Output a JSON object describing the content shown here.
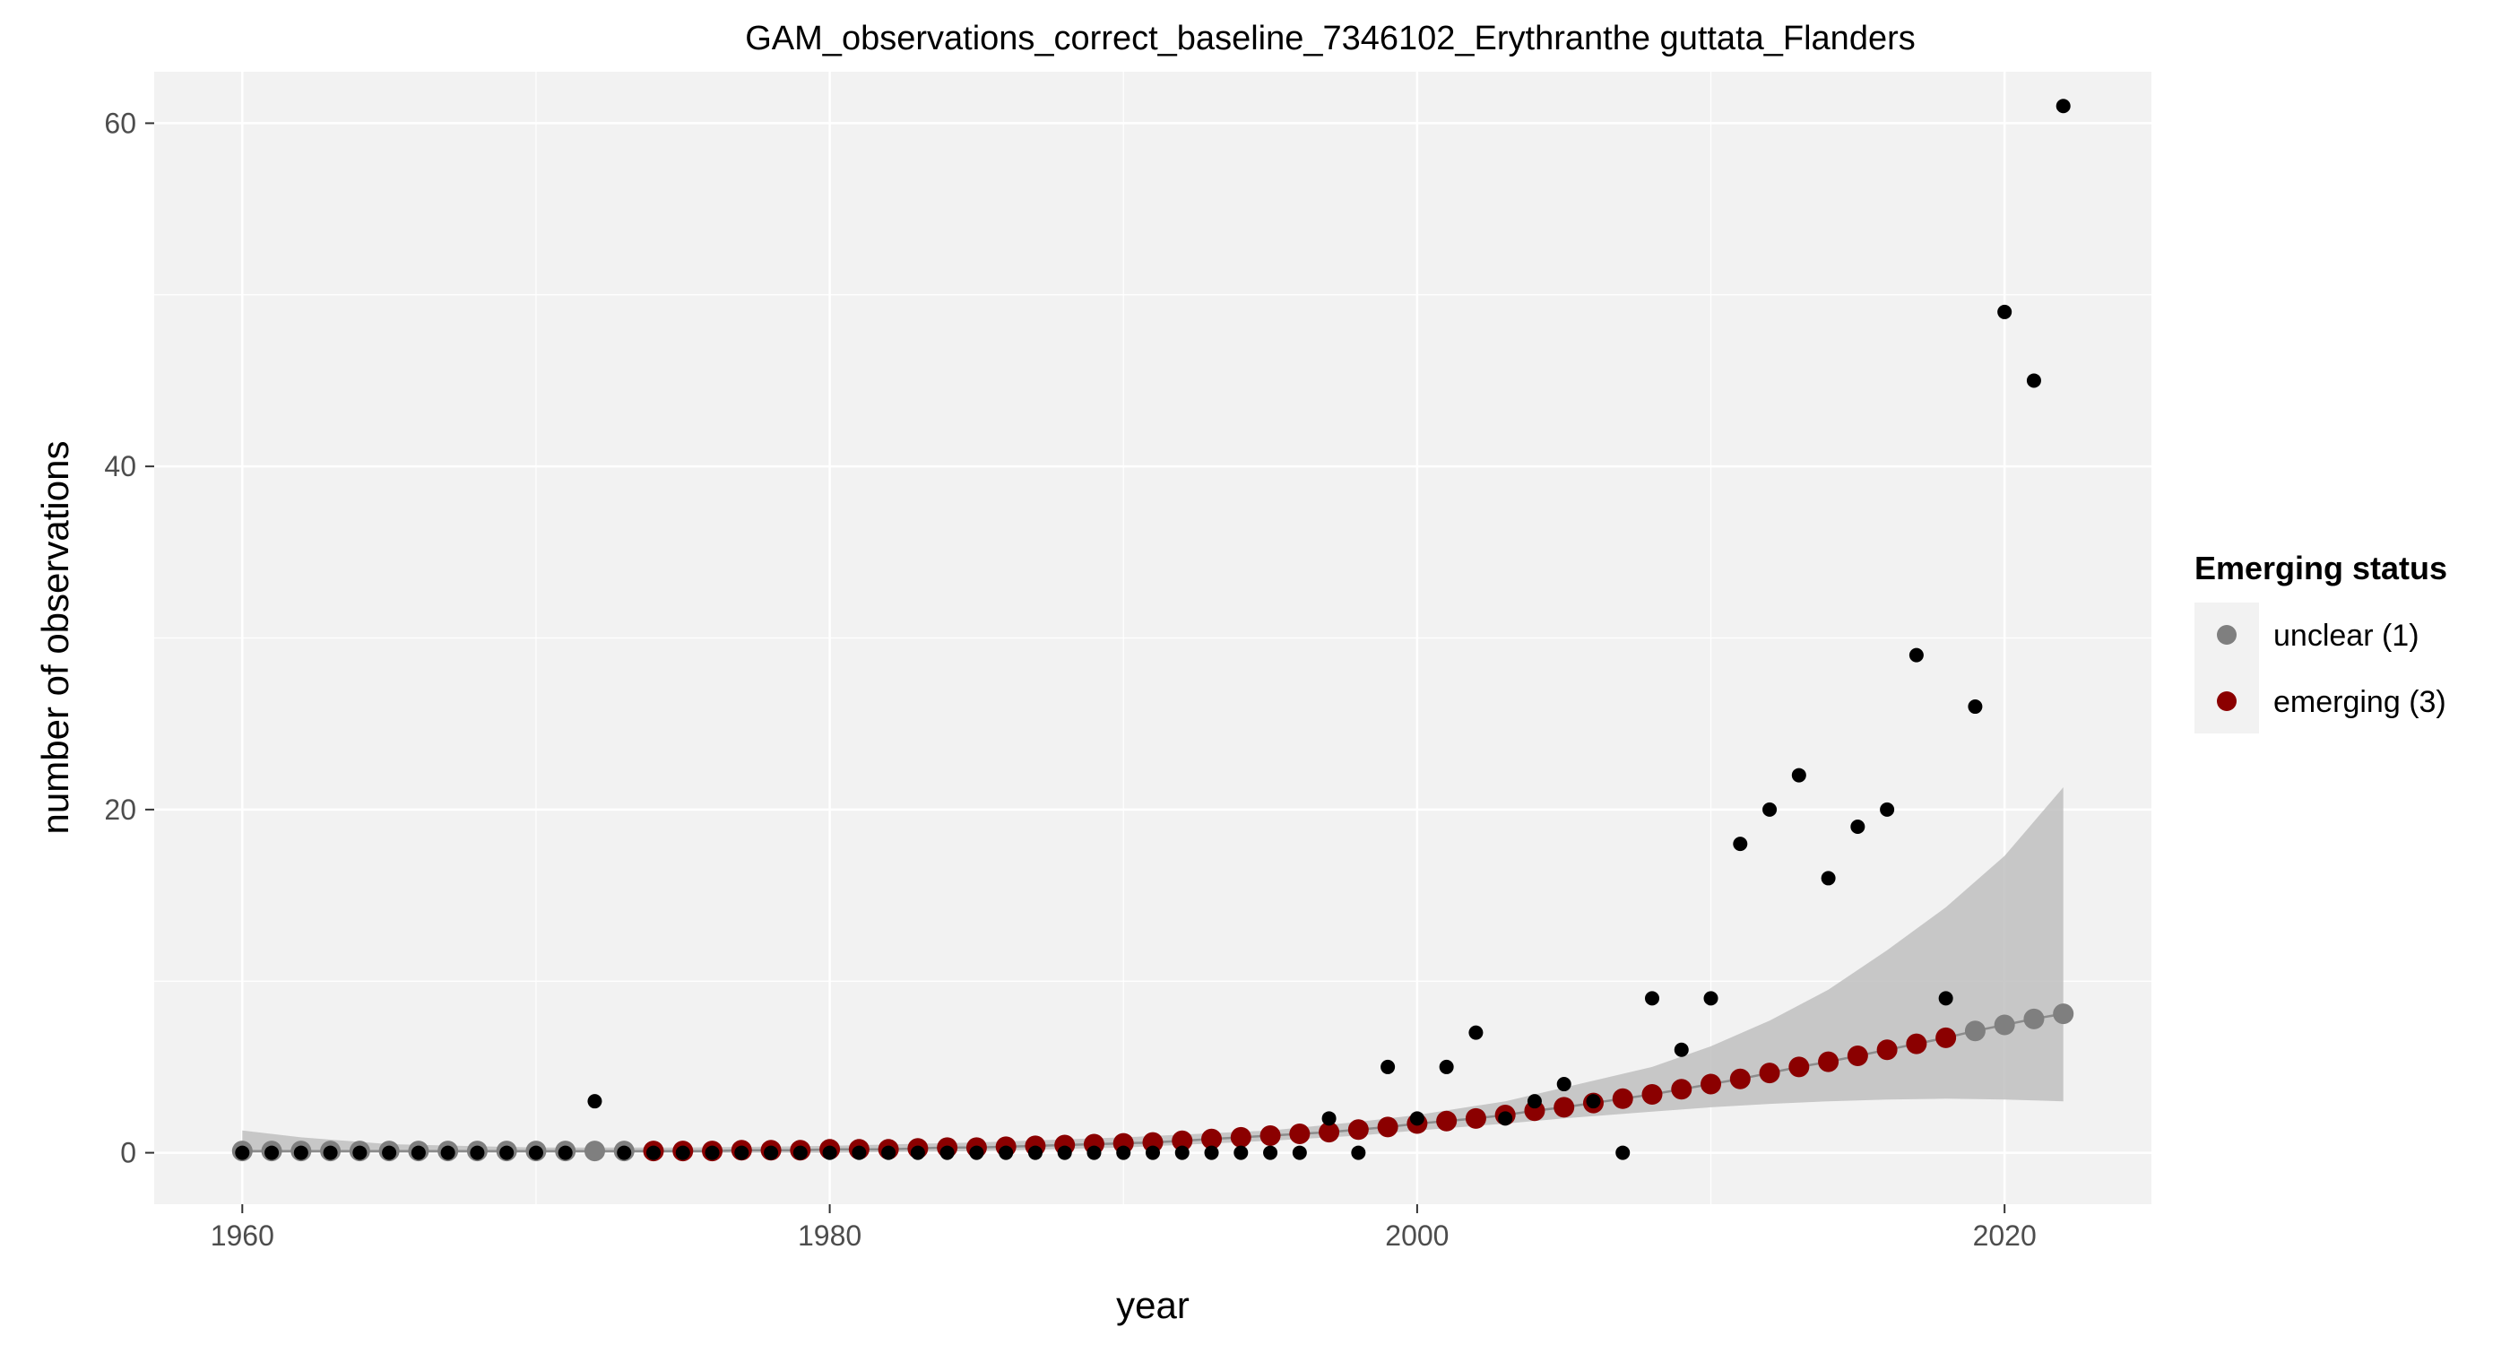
{
  "chart_data": {
    "type": "scatter",
    "title": "GAM_observations_correct_baseline_7346102_Erythranthe guttata_Flanders",
    "xlabel": "year",
    "ylabel": "number of observations",
    "xlim": [
      1957,
      2025
    ],
    "ylim": [
      -3,
      63
    ],
    "x_ticks": [
      1960,
      1980,
      2000,
      2020
    ],
    "y_ticks": [
      0,
      20,
      40,
      60
    ],
    "grid": true,
    "legend": {
      "title": "Emerging status",
      "position": "right",
      "entries": [
        {
          "label": "unclear (1)",
          "color": "#7f7f7f"
        },
        {
          "label": "emerging (3)",
          "color": "#8b0000"
        }
      ]
    },
    "colors": {
      "panel": "#f2f2f2",
      "grid": "#ffffff",
      "observed": "#000000",
      "ribbon": "#bfbfbf",
      "unclear": "#7f7f7f",
      "emerging": "#8b0000"
    },
    "observed": {
      "x": [
        1960,
        1961,
        1962,
        1963,
        1964,
        1965,
        1966,
        1967,
        1968,
        1969,
        1970,
        1971,
        1972,
        1973,
        1974,
        1975,
        1976,
        1977,
        1978,
        1979,
        1980,
        1981,
        1982,
        1983,
        1984,
        1985,
        1986,
        1987,
        1988,
        1989,
        1990,
        1991,
        1992,
        1993,
        1994,
        1995,
        1996,
        1997,
        1998,
        1999,
        2000,
        2001,
        2002,
        2003,
        2004,
        2005,
        2006,
        2007,
        2008,
        2009,
        2010,
        2011,
        2012,
        2013,
        2014,
        2015,
        2016,
        2017,
        2018,
        2019,
        2020,
        2021,
        2022
      ],
      "y": [
        0,
        0,
        0,
        0,
        0,
        0,
        0,
        0,
        0,
        0,
        0,
        0,
        3,
        0,
        0,
        0,
        0,
        0,
        0,
        0,
        0,
        0,
        0,
        0,
        0,
        0,
        0,
        0,
        0,
        0,
        0,
        0,
        0,
        0,
        0,
        0,
        0,
        2,
        0,
        5,
        2,
        5,
        7,
        2,
        3,
        4,
        3,
        0,
        9,
        6,
        9,
        18,
        20,
        22,
        16,
        19,
        20,
        29,
        9,
        26,
        49,
        45,
        61
      ]
    },
    "smooth": {
      "x": [
        1960,
        1961,
        1962,
        1963,
        1964,
        1965,
        1966,
        1967,
        1968,
        1969,
        1970,
        1971,
        1972,
        1973,
        1974,
        1975,
        1976,
        1977,
        1978,
        1979,
        1980,
        1981,
        1982,
        1983,
        1984,
        1985,
        1986,
        1987,
        1988,
        1989,
        1990,
        1991,
        1992,
        1993,
        1994,
        1995,
        1996,
        1997,
        1998,
        1999,
        2000,
        2001,
        2002,
        2003,
        2004,
        2005,
        2006,
        2007,
        2008,
        2009,
        2010,
        2011,
        2012,
        2013,
        2014,
        2015,
        2016,
        2017,
        2018,
        2019,
        2020,
        2021,
        2022
      ],
      "y": [
        0.1,
        0.1,
        0.1,
        0.1,
        0.1,
        0.1,
        0.1,
        0.1,
        0.1,
        0.1,
        0.1,
        0.1,
        0.1,
        0.1,
        0.1,
        0.1,
        0.1,
        0.15,
        0.15,
        0.15,
        0.2,
        0.2,
        0.2,
        0.25,
        0.3,
        0.3,
        0.35,
        0.4,
        0.45,
        0.5,
        0.55,
        0.6,
        0.7,
        0.8,
        0.9,
        1.0,
        1.1,
        1.2,
        1.35,
        1.5,
        1.7,
        1.85,
        2.0,
        2.2,
        2.45,
        2.65,
        2.9,
        3.15,
        3.4,
        3.7,
        4.0,
        4.3,
        4.65,
        5.0,
        5.3,
        5.65,
        6.0,
        6.35,
        6.7,
        7.1,
        7.45,
        7.8,
        8.1
      ],
      "status": [
        "unclear",
        "unclear",
        "unclear",
        "unclear",
        "unclear",
        "unclear",
        "unclear",
        "unclear",
        "unclear",
        "unclear",
        "unclear",
        "unclear",
        "unclear",
        "unclear",
        "emerging",
        "emerging",
        "emerging",
        "emerging",
        "emerging",
        "emerging",
        "emerging",
        "emerging",
        "emerging",
        "emerging",
        "emerging",
        "emerging",
        "emerging",
        "emerging",
        "emerging",
        "emerging",
        "emerging",
        "emerging",
        "emerging",
        "emerging",
        "emerging",
        "emerging",
        "emerging",
        "emerging",
        "emerging",
        "emerging",
        "emerging",
        "emerging",
        "emerging",
        "emerging",
        "emerging",
        "emerging",
        "emerging",
        "emerging",
        "emerging",
        "emerging",
        "emerging",
        "emerging",
        "emerging",
        "emerging",
        "emerging",
        "emerging",
        "emerging",
        "emerging",
        "emerging",
        "unclear",
        "unclear",
        "unclear",
        "unclear"
      ]
    },
    "confidence_band": {
      "x": [
        1960,
        1962,
        1965,
        1970,
        1975,
        1980,
        1985,
        1990,
        1995,
        1998,
        2000,
        2003,
        2005,
        2008,
        2010,
        2012,
        2014,
        2016,
        2018,
        2020,
        2022
      ],
      "lower": [
        0.0,
        0.0,
        0.0,
        0.0,
        0.0,
        0.0,
        0.1,
        0.3,
        0.7,
        1.0,
        1.3,
        1.7,
        2.0,
        2.4,
        2.65,
        2.85,
        3.0,
        3.1,
        3.15,
        3.1,
        3.0
      ],
      "upper": [
        1.3,
        0.9,
        0.5,
        0.3,
        0.3,
        0.4,
        0.6,
        0.9,
        1.3,
        1.8,
        2.2,
        3.0,
        3.8,
        5.0,
        6.2,
        7.7,
        9.5,
        11.8,
        14.3,
        17.3,
        21.3
      ]
    }
  }
}
